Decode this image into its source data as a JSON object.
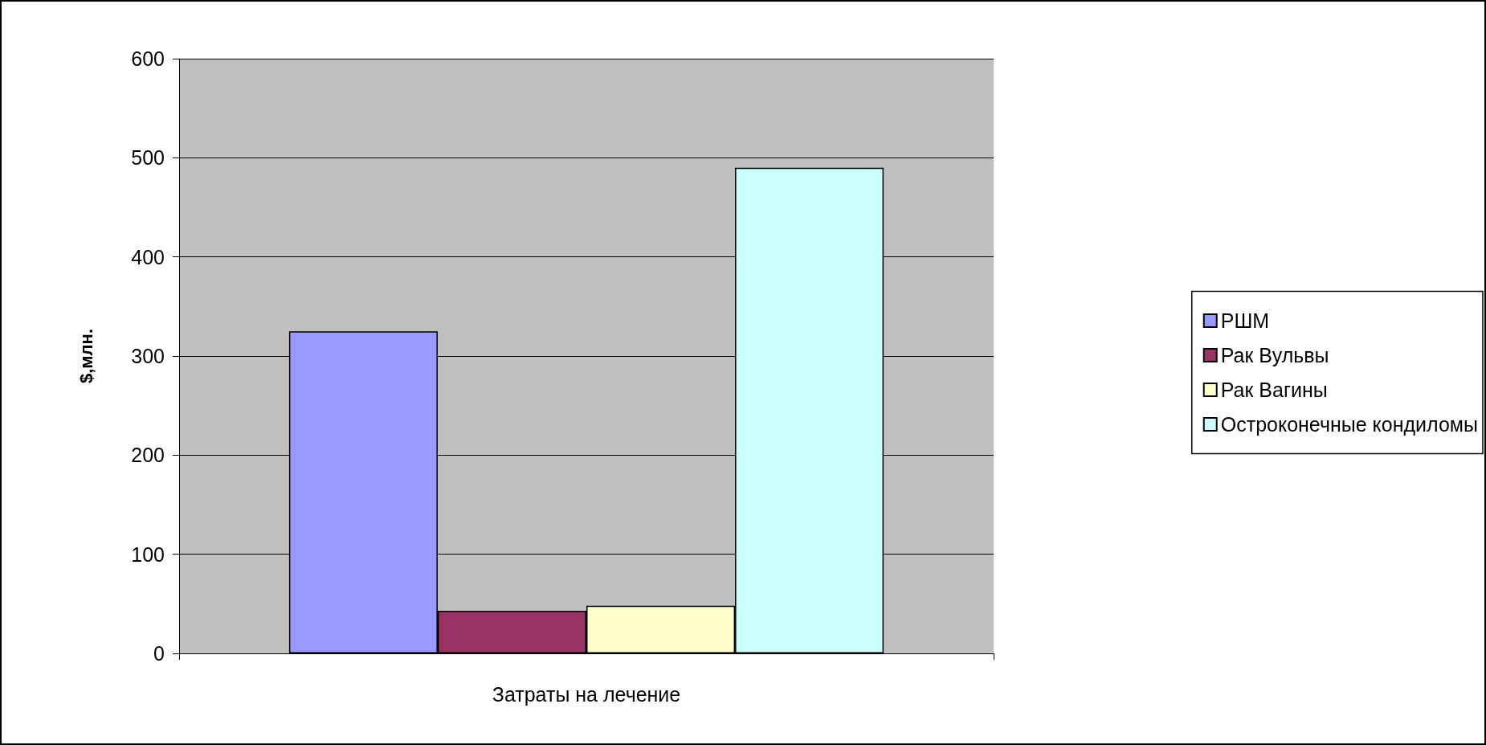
{
  "chart_data": {
    "type": "bar",
    "ylabel": "$,млн.",
    "categories": [
      "Затраты на лечение"
    ],
    "series": [
      {
        "name": "РШМ",
        "color": "#9999ff",
        "values": [
          325
        ]
      },
      {
        "name": "Рак Вульвы",
        "color": "#993366",
        "values": [
          43
        ]
      },
      {
        "name": "Рак Вагины",
        "color": "#ffffcc",
        "values": [
          48
        ]
      },
      {
        "name": "Остроконечные кондиломы",
        "color": "#ccffff",
        "values": [
          490
        ]
      }
    ],
    "ylim": [
      0,
      600
    ],
    "yticks": [
      0,
      100,
      200,
      300,
      400,
      500,
      600
    ],
    "grid": "y",
    "legend": "right"
  }
}
